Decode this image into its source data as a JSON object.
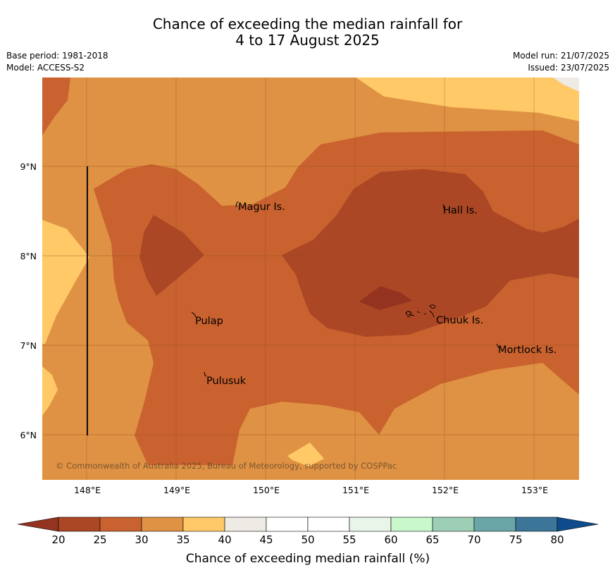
{
  "header": {
    "title_line1": "Chance of exceeding the median rainfall for",
    "title_line2": "4 to 17 August 2025",
    "base_period": "Base period: 1981-2018",
    "model": "Model: ACCESS-S2",
    "model_run": "Model run: 21/07/2025",
    "issued": "Issued: 23/07/2025"
  },
  "map": {
    "lat_labels": [
      "9°N",
      "8°N",
      "7°N",
      "6°N"
    ],
    "lon_labels": [
      "148°E",
      "149°E",
      "150°E",
      "151°E",
      "152°E",
      "153°E"
    ],
    "places": [
      "Magur Is.",
      "Hall Is.",
      "Pulap",
      "Chuuk Is.",
      "Mortlock Is.",
      "Pulusuk"
    ],
    "copyright": "© Commonwealth of Australia 2025, Bureau of Meteorology, supported by COSPPac"
  },
  "colorbar": {
    "ticks": [
      "20",
      "25",
      "30",
      "35",
      "40",
      "45",
      "50",
      "55",
      "60",
      "65",
      "70",
      "75",
      "80"
    ],
    "colors": [
      "#ab4725",
      "#c9622f",
      "#df9243",
      "#fec966",
      "#eeebe5",
      "#ffffff",
      "#ffffff",
      "#eaf5ea",
      "#c8f8cb",
      "#9ccfb5",
      "#6aa6a7",
      "#3b7597"
    ],
    "under_color": "#933320",
    "over_color": "#0f4b8c",
    "label": "Chance of exceeding median rainfall (%)"
  }
}
